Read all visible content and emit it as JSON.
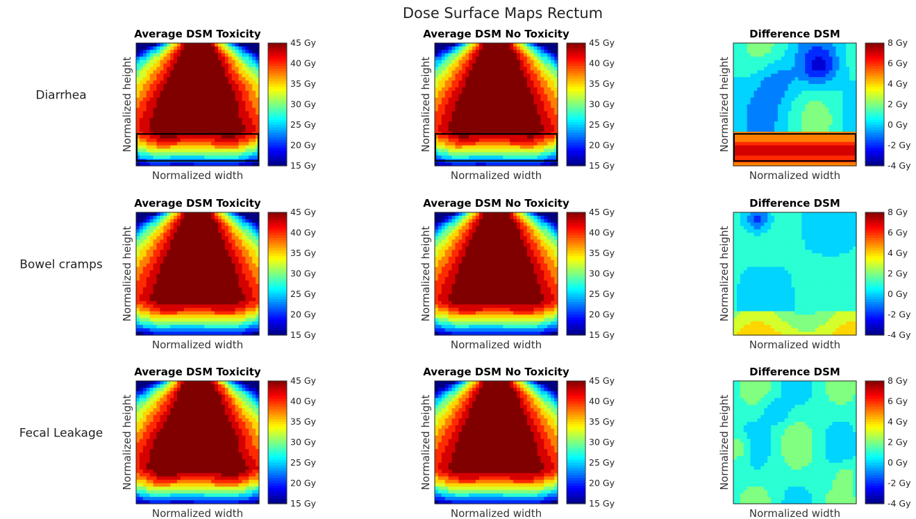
{
  "figure": {
    "title": "Dose Surface Maps Rectum"
  },
  "colormap": "jet",
  "rows": [
    {
      "label": "Diarrhea"
    },
    {
      "label": "Bowel cramps"
    },
    {
      "label": "Fecal Leakage"
    }
  ],
  "chart_data": [
    {
      "type": "heatmap",
      "row": "Diarrhea",
      "title": "Average DSM Toxicity",
      "xlabel": "Normalized width",
      "ylabel": "Normalized height",
      "clim": [
        15,
        45
      ],
      "colorbar_ticks": [
        "45 Gy",
        "40 Gy",
        "35 Gy",
        "30 Gy",
        "25 Gy",
        "20 Gy",
        "15 Gy"
      ],
      "pattern": "dose",
      "params": {
        "core": 0.98,
        "wobble": 0.35,
        "floor": 15
      },
      "region_box": true
    },
    {
      "type": "heatmap",
      "row": "Diarrhea",
      "title": "Average DSM No Toxicity",
      "xlabel": "Normalized width",
      "ylabel": "Normalized height",
      "clim": [
        15,
        45
      ],
      "colorbar_ticks": [
        "45 Gy",
        "40 Gy",
        "35 Gy",
        "30 Gy",
        "25 Gy",
        "20 Gy",
        "15 Gy"
      ],
      "pattern": "dose",
      "params": {
        "core": 0.96,
        "wobble": 0.2,
        "floor": 15
      },
      "region_box": true
    },
    {
      "type": "heatmap",
      "row": "Diarrhea",
      "title": "Difference DSM",
      "xlabel": "Normalized width",
      "ylabel": "Normalized height",
      "clim": [
        -4,
        8
      ],
      "colorbar_ticks": [
        "8 Gy",
        "6 Gy",
        "4 Gy",
        "2 Gy",
        "0 Gy",
        "-2 Gy",
        "-4 Gy"
      ],
      "pattern": "diff_a",
      "region_box": true
    },
    {
      "type": "heatmap",
      "row": "Bowel cramps",
      "title": "Average DSM Toxicity",
      "xlabel": "Normalized width",
      "ylabel": "Normalized height",
      "clim": [
        15,
        45
      ],
      "colorbar_ticks": [
        "45 Gy",
        "40 Gy",
        "35 Gy",
        "30 Gy",
        "25 Gy",
        "20 Gy",
        "15 Gy"
      ],
      "pattern": "dose",
      "params": {
        "core": 0.94,
        "wobble": 0.1,
        "floor": 15
      },
      "region_box": false
    },
    {
      "type": "heatmap",
      "row": "Bowel cramps",
      "title": "Average DSM No Toxicity",
      "xlabel": "Normalized width",
      "ylabel": "Normalized height",
      "clim": [
        15,
        45
      ],
      "colorbar_ticks": [
        "45 Gy",
        "40 Gy",
        "35 Gy",
        "30 Gy",
        "25 Gy",
        "20 Gy",
        "15 Gy"
      ],
      "pattern": "dose",
      "params": {
        "core": 0.95,
        "wobble": 0.1,
        "floor": 15
      },
      "region_box": false
    },
    {
      "type": "heatmap",
      "row": "Bowel cramps",
      "title": "Difference DSM",
      "xlabel": "Normalized width",
      "ylabel": "Normalized height",
      "clim": [
        -4,
        8
      ],
      "colorbar_ticks": [
        "8 Gy",
        "6 Gy",
        "4 Gy",
        "2 Gy",
        "0 Gy",
        "-2 Gy",
        "-4 Gy"
      ],
      "pattern": "diff_b",
      "region_box": false
    },
    {
      "type": "heatmap",
      "row": "Fecal Leakage",
      "title": "Average DSM Toxicity",
      "xlabel": "Normalized width",
      "ylabel": "Normalized height",
      "clim": [
        15,
        45
      ],
      "colorbar_ticks": [
        "45 Gy",
        "40 Gy",
        "35 Gy",
        "30 Gy",
        "25 Gy",
        "20 Gy",
        "15 Gy"
      ],
      "pattern": "dose",
      "params": {
        "core": 1.02,
        "wobble": 0.4,
        "floor": 15
      },
      "region_box": false
    },
    {
      "type": "heatmap",
      "row": "Fecal Leakage",
      "title": "Average DSM No Toxicity",
      "xlabel": "Normalized width",
      "ylabel": "Normalized height",
      "clim": [
        15,
        45
      ],
      "colorbar_ticks": [
        "45 Gy",
        "40 Gy",
        "35 Gy",
        "30 Gy",
        "25 Gy",
        "20 Gy",
        "15 Gy"
      ],
      "pattern": "dose",
      "params": {
        "core": 0.95,
        "wobble": 0.15,
        "floor": 15
      },
      "region_box": false
    },
    {
      "type": "heatmap",
      "row": "Fecal Leakage",
      "title": "Difference DSM",
      "xlabel": "Normalized width",
      "ylabel": "Normalized height",
      "clim": [
        -4,
        8
      ],
      "colorbar_ticks": [
        "8 Gy",
        "6 Gy",
        "4 Gy",
        "2 Gy",
        "0 Gy",
        "-2 Gy",
        "-4 Gy"
      ],
      "pattern": "diff_c",
      "region_box": false
    }
  ]
}
